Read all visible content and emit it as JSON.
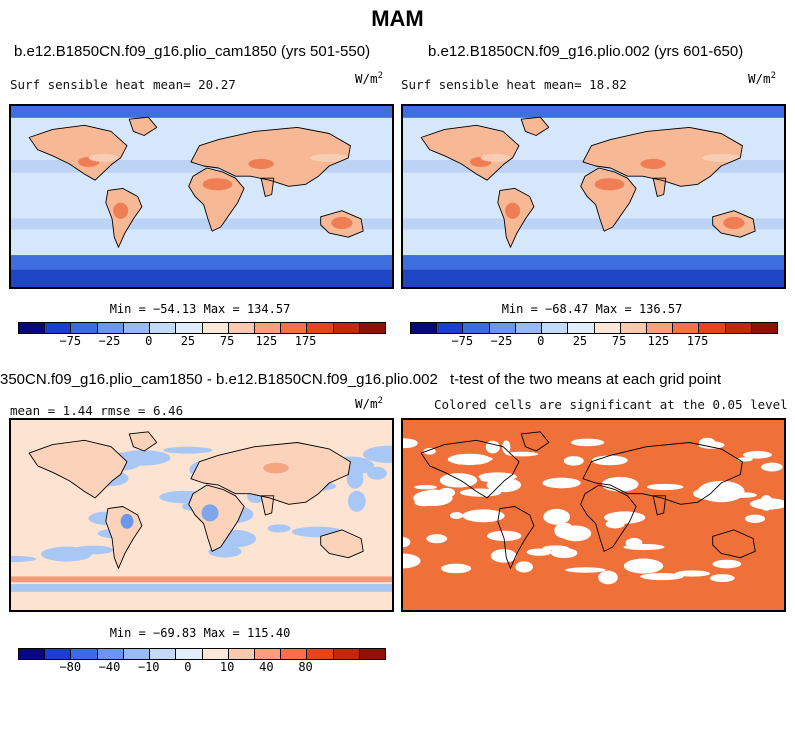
{
  "figure_title": "MAM",
  "panels": {
    "p1": {
      "title": "b.e12.B1850CN.f09_g16.plio_cam1850 (yrs 501-550)",
      "subtitle": "Surf sensible heat   mean=  20.27",
      "units": "W/m",
      "units_exp": "2",
      "minmax": "Min = −54.13 Max = 134.57"
    },
    "p2": {
      "title": "b.e12.B1850CN.f09_g16.plio.002 (yrs 601-650)",
      "subtitle": "Surf sensible heat   mean=  18.82",
      "units": "W/m",
      "units_exp": "2",
      "minmax": "Min = −68.47 Max = 136.57"
    },
    "p3": {
      "title": "350CN.f09_g16.plio_cam1850 - b.e12.B1850CN.f09_g16.plio.002",
      "subtitle": "mean =   1.44    rmse =   6.46",
      "units": "W/m",
      "units_exp": "2",
      "minmax": "Min = −69.83 Max = 115.40"
    },
    "p4": {
      "title": "t-test of the two means at each grid point",
      "subtitle": "Colored cells are significant at the 0.05 level"
    }
  },
  "colorbars": {
    "abs": {
      "colors": [
        "#08087a",
        "#1a3fcf",
        "#3b6ce0",
        "#6a96ee",
        "#98baf5",
        "#c4dafa",
        "#e2eefc",
        "#fde8d8",
        "#fbc9ad",
        "#f7a07b",
        "#f27149",
        "#e4451f",
        "#c02a0a",
        "#8c1204"
      ],
      "labels": [
        "−75",
        "−25",
        "0",
        "25",
        "75",
        "125",
        "175"
      ]
    },
    "diff": {
      "colors": [
        "#08087a",
        "#1a3fcf",
        "#3b6ce0",
        "#6a96ee",
        "#98baf5",
        "#c4dafa",
        "#e2eefc",
        "#fde8d8",
        "#fbc9ad",
        "#f7a07b",
        "#f27149",
        "#e4451f",
        "#c02a0a",
        "#8c1204"
      ],
      "labels": [
        "−80",
        "−40",
        "−10",
        "0",
        "10",
        "40",
        "80"
      ]
    }
  },
  "map_colors": {
    "ocean_light": "#d6e6fb",
    "ocean_mid": "#bcd3f5",
    "ice_blue": "#3f6fde",
    "ice_dark": "#1e46c4",
    "land_warm": "#f7b896",
    "land_hot": "#ef7e55",
    "diff_base": "#fde4d2",
    "diff_neg": "#a9c7f4",
    "signif": "#f0703a"
  }
}
